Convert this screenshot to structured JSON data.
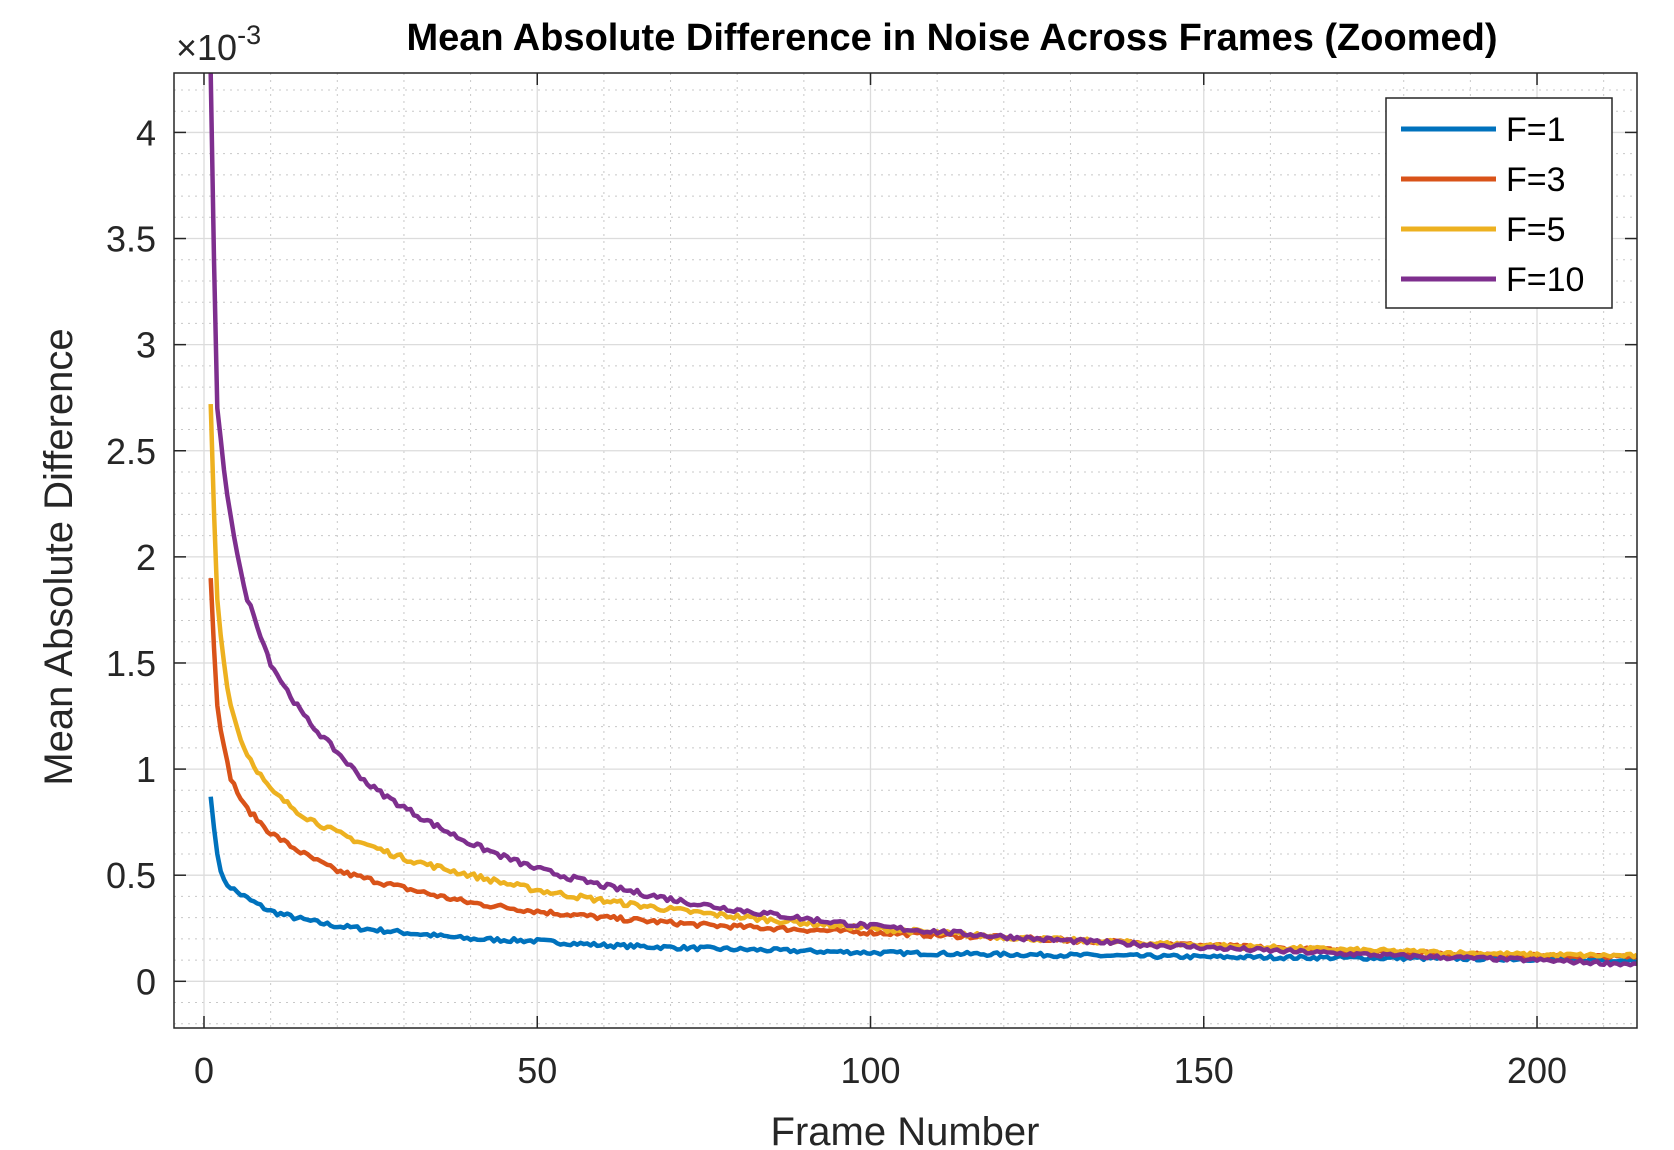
{
  "chart_data": {
    "type": "line",
    "title": "Mean Absolute Difference in Noise Across Frames (Zoomed)",
    "xlabel": "Frame Number",
    "ylabel": "Mean Absolute Difference",
    "exponent_base": "×10",
    "exponent_power": "-3",
    "xlim": [
      -4.5,
      215
    ],
    "ylim": [
      -0.22,
      4.28
    ],
    "y_scale_factor": 0.001,
    "x_ticks": [
      0,
      50,
      100,
      150,
      200
    ],
    "x_tick_labels": [
      "0",
      "50",
      "100",
      "150",
      "200"
    ],
    "y_ticks": [
      0,
      0.5,
      1,
      1.5,
      2,
      2.5,
      3,
      3.5,
      4
    ],
    "y_tick_labels": [
      "0",
      "0.5",
      "1",
      "1.5",
      "2",
      "2.5",
      "3",
      "3.5",
      "4"
    ],
    "grid": true,
    "minor_grid": true,
    "legend_position": "top-right",
    "x_start": 1,
    "x_end": 215,
    "series": [
      {
        "name": "F=1",
        "color": "#0072BD",
        "anchors": [
          [
            1,
            0.87
          ],
          [
            2,
            0.6
          ],
          [
            3,
            0.47
          ],
          [
            5,
            0.42
          ],
          [
            10,
            0.33
          ],
          [
            15,
            0.29
          ],
          [
            20,
            0.26
          ],
          [
            30,
            0.23
          ],
          [
            40,
            0.2
          ],
          [
            50,
            0.19
          ],
          [
            60,
            0.17
          ],
          [
            75,
            0.155
          ],
          [
            100,
            0.135
          ],
          [
            125,
            0.125
          ],
          [
            150,
            0.115
          ],
          [
            175,
            0.11
          ],
          [
            200,
            0.105
          ],
          [
            215,
            0.1
          ]
        ],
        "noise": 0.012
      },
      {
        "name": "F=3",
        "color": "#D95319",
        "anchors": [
          [
            1,
            1.9
          ],
          [
            2,
            1.3
          ],
          [
            3,
            1.1
          ],
          [
            4,
            0.96
          ],
          [
            6,
            0.83
          ],
          [
            10,
            0.7
          ],
          [
            15,
            0.6
          ],
          [
            20,
            0.52
          ],
          [
            30,
            0.44
          ],
          [
            40,
            0.37
          ],
          [
            50,
            0.33
          ],
          [
            60,
            0.3
          ],
          [
            75,
            0.265
          ],
          [
            100,
            0.23
          ],
          [
            125,
            0.2
          ],
          [
            150,
            0.17
          ],
          [
            175,
            0.14
          ],
          [
            200,
            0.12
          ],
          [
            215,
            0.115
          ]
        ],
        "noise": 0.012
      },
      {
        "name": "F=5",
        "color": "#EDB120",
        "anchors": [
          [
            1,
            2.72
          ],
          [
            2,
            1.8
          ],
          [
            3,
            1.5
          ],
          [
            4,
            1.3
          ],
          [
            6,
            1.1
          ],
          [
            10,
            0.9
          ],
          [
            15,
            0.78
          ],
          [
            20,
            0.7
          ],
          [
            30,
            0.58
          ],
          [
            40,
            0.5
          ],
          [
            50,
            0.43
          ],
          [
            60,
            0.38
          ],
          [
            75,
            0.32
          ],
          [
            100,
            0.25
          ],
          [
            125,
            0.2
          ],
          [
            150,
            0.17
          ],
          [
            175,
            0.145
          ],
          [
            200,
            0.125
          ],
          [
            215,
            0.12
          ]
        ],
        "noise": 0.013
      },
      {
        "name": "F=10",
        "color": "#7E2F8E",
        "anchors": [
          [
            1,
            4.28
          ],
          [
            2,
            2.7
          ],
          [
            3,
            2.4
          ],
          [
            4,
            2.2
          ],
          [
            6,
            1.85
          ],
          [
            8,
            1.68
          ],
          [
            10,
            1.5
          ],
          [
            15,
            1.25
          ],
          [
            20,
            1.08
          ],
          [
            25,
            0.92
          ],
          [
            30,
            0.82
          ],
          [
            40,
            0.65
          ],
          [
            50,
            0.53
          ],
          [
            60,
            0.45
          ],
          [
            75,
            0.36
          ],
          [
            100,
            0.26
          ],
          [
            125,
            0.2
          ],
          [
            150,
            0.16
          ],
          [
            175,
            0.125
          ],
          [
            200,
            0.1
          ],
          [
            215,
            0.08
          ]
        ],
        "noise": 0.013
      }
    ]
  }
}
